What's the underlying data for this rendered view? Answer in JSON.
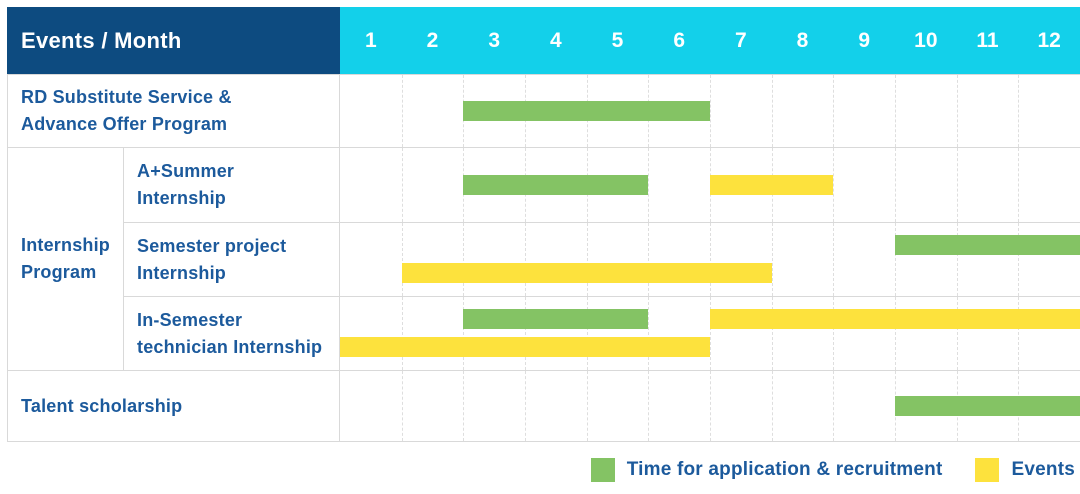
{
  "colors": {
    "header_bg": "#0d4b80",
    "months_bg": "#13d0ea",
    "application": "#84c364",
    "events": "#fde23d",
    "label_text": "#1c5a9c",
    "grid": "#d9d9d9"
  },
  "chart_data": {
    "type": "gantt",
    "title": "Events / Month",
    "x_axis_label": "Month",
    "months": [
      "1",
      "2",
      "3",
      "4",
      "5",
      "6",
      "7",
      "8",
      "9",
      "10",
      "11",
      "12"
    ],
    "group_label": "Internship\nProgram",
    "series_legend": [
      {
        "name": "Time for application & recruitment",
        "series": "application",
        "color": "#84c364"
      },
      {
        "name": "Events",
        "series": "events",
        "color": "#fde23d"
      }
    ],
    "rows": [
      {
        "label": "RD Substitute Service &\nAdvance Offer Program",
        "group": null,
        "bars": [
          {
            "series": "application",
            "start_month": 3,
            "end_month": 6,
            "track": "center"
          }
        ]
      },
      {
        "label": "A+Summer\nInternship",
        "group": "Internship Program",
        "bars": [
          {
            "series": "application",
            "start_month": 3,
            "end_month": 5,
            "track": "center"
          },
          {
            "series": "events",
            "start_month": 7,
            "end_month": 8,
            "track": "center"
          }
        ]
      },
      {
        "label": "Semester project\nInternship",
        "group": "Internship Program",
        "bars": [
          {
            "series": "application",
            "start_month": 10,
            "end_month": 12,
            "track": "top"
          },
          {
            "series": "events",
            "start_month": 2,
            "end_month": 7,
            "track": "bottom"
          }
        ]
      },
      {
        "label": "In-Semester\ntechnician Internship",
        "group": "Internship Program",
        "bars": [
          {
            "series": "application",
            "start_month": 3,
            "end_month": 5,
            "track": "top"
          },
          {
            "series": "events",
            "start_month": 7,
            "end_month": 12,
            "track": "top"
          },
          {
            "series": "events",
            "start_month": 1,
            "end_month": 6,
            "track": "bottom"
          }
        ]
      },
      {
        "label": "Talent scholarship",
        "group": null,
        "bars": [
          {
            "series": "application",
            "start_month": 10,
            "end_month": 12,
            "track": "center"
          }
        ]
      }
    ]
  }
}
